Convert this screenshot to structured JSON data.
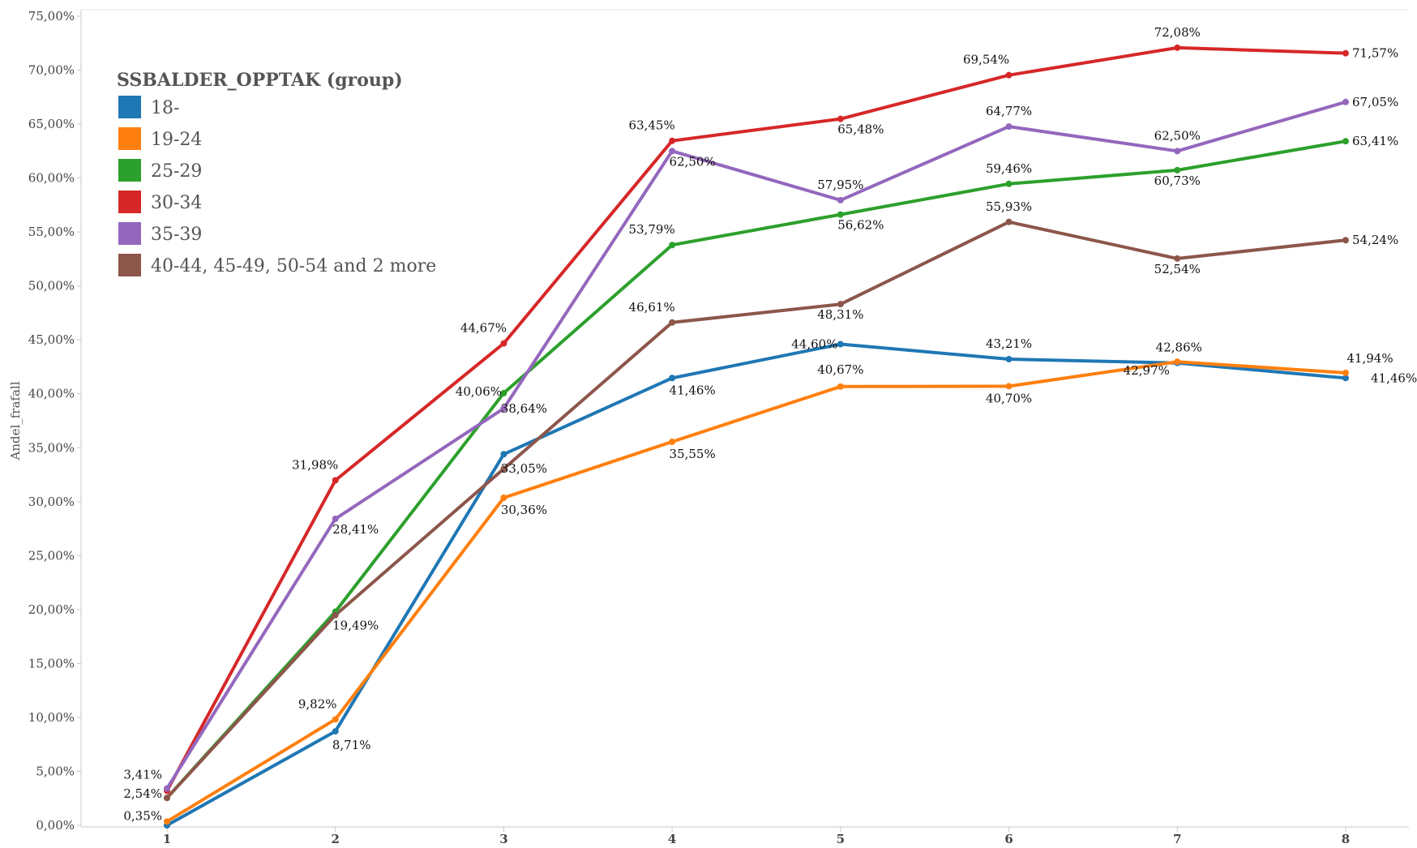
{
  "chart_data": {
    "type": "line",
    "title": "",
    "xlabel": "",
    "ylabel": "Andel_frafall",
    "x": [
      1,
      2,
      3,
      4,
      5,
      6,
      7,
      8
    ],
    "ylim": [
      0,
      75
    ],
    "y_ticks": [
      "0,00%",
      "5,00%",
      "10,00%",
      "15,00%",
      "20,00%",
      "25,00%",
      "30,00%",
      "35,00%",
      "40,00%",
      "45,00%",
      "50,00%",
      "55,00%",
      "60,00%",
      "65,00%",
      "70,00%",
      "75,00%"
    ],
    "x_ticks": [
      "1",
      "2",
      "3",
      "4",
      "5",
      "6",
      "7",
      "8"
    ],
    "grid": false,
    "legend": {
      "title": "SSBALDER_OPPTAK (group)",
      "placement": "top-left"
    },
    "series": [
      {
        "name": "18-",
        "color": "#1f77b4",
        "values": [
          0,
          8.71,
          34.4,
          41.46,
          44.6,
          43.21,
          42.86,
          41.46
        ],
        "labels": [
          "",
          "8,71%",
          "",
          "41,46%",
          "44,60%",
          "43,21%",
          "42,86%",
          "41,46%"
        ]
      },
      {
        "name": "19-24",
        "color": "#ff7f0e",
        "values": [
          0.35,
          9.82,
          30.36,
          35.55,
          40.67,
          40.7,
          42.97,
          41.94
        ],
        "labels": [
          "0,35%",
          "9,82%",
          "30,36%",
          "35,55%",
          "40,67%",
          "40,70%",
          "42,97%",
          "41,94%"
        ]
      },
      {
        "name": "25-29",
        "color": "#2ca02c",
        "values": [
          2.54,
          19.8,
          40.06,
          53.79,
          56.62,
          59.46,
          60.73,
          63.41
        ],
        "labels": [
          "2,54%",
          "",
          "40,06%",
          "53,79%",
          "56,62%",
          "59,46%",
          "60,73%",
          "63,41%"
        ]
      },
      {
        "name": "30-34",
        "color": "#d62728",
        "values": [
          3.2,
          31.98,
          44.67,
          63.45,
          65.48,
          69.54,
          72.08,
          71.57
        ],
        "labels": [
          "",
          "31,98%",
          "44,67%",
          "63,45%",
          "65,48%",
          "69,54%",
          "72,08%",
          "71,57%"
        ]
      },
      {
        "name": "35-39",
        "color": "#9467bd",
        "values": [
          3.41,
          28.41,
          38.64,
          62.5,
          57.95,
          64.77,
          62.5,
          67.05
        ],
        "labels": [
          "3,41%",
          "28,41%",
          "38,64%",
          "62,50%",
          "57,95%",
          "64,77%",
          "62,50%",
          "67,05%"
        ]
      },
      {
        "name": "40-44, 45-49, 50-54 and 2 more",
        "color": "#8c564b",
        "values": [
          2.54,
          19.49,
          33.05,
          46.61,
          48.31,
          55.93,
          52.54,
          54.24
        ],
        "labels": [
          "",
          "19,49%",
          "33,05%",
          "46,61%",
          "48,31%",
          "55,93%",
          "52,54%",
          "54,24%"
        ]
      }
    ]
  }
}
